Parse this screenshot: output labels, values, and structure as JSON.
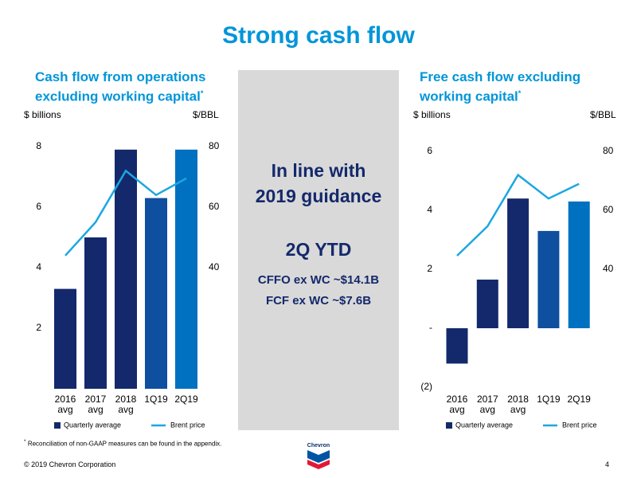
{
  "title": "Strong cash flow",
  "note_mark": "*",
  "chart_data": [
    {
      "type": "bar",
      "subtitle": "Cash flow from operations excluding working capital",
      "ylabel": "$ billions",
      "y2label": "$/BBL",
      "categories": [
        "2016 avg",
        "2017 avg",
        "2018 avg",
        "1Q19",
        "2Q19"
      ],
      "series": [
        {
          "name": "Quarterly average",
          "type": "bar",
          "color": "#14296b",
          "colors": [
            "#14296b",
            "#14296b",
            "#14296b",
            "#0e4f9f",
            "#0070c0"
          ],
          "values": [
            3.3,
            5.0,
            7.9,
            6.3,
            7.9
          ]
        },
        {
          "name": "Brent price",
          "type": "line",
          "color": "#1ba7e0",
          "axis": "y2",
          "values": [
            44,
            55,
            72,
            64,
            69.5
          ]
        }
      ],
      "ylim": [
        0,
        8
      ],
      "yticks": [
        2,
        4,
        6,
        8
      ],
      "y2lim": [
        0,
        80
      ],
      "y2ticks": [
        40,
        60,
        80
      ],
      "grid": false
    },
    {
      "type": "bar",
      "subtitle": "Free cash flow excluding working capital",
      "ylabel": "$ billions",
      "y2label": "$/BBL",
      "categories": [
        "2016 avg",
        "2017 avg",
        "2018 avg",
        "1Q19",
        "2Q19"
      ],
      "series": [
        {
          "name": "Quarterly average",
          "type": "bar",
          "color": "#14296b",
          "colors": [
            "#14296b",
            "#14296b",
            "#14296b",
            "#0e4f9f",
            "#0070c0"
          ],
          "values": [
            -1.2,
            1.65,
            4.4,
            3.3,
            4.3
          ]
        },
        {
          "name": "Brent price",
          "type": "line",
          "color": "#1ba7e0",
          "axis": "y2",
          "values": [
            44.6,
            54.6,
            72,
            64,
            69
          ]
        }
      ],
      "ylim": [
        -2,
        6
      ],
      "yticks": [
        {
          "value": -2,
          "label": "(2)"
        },
        {
          "value": 0,
          "label": "-"
        },
        2,
        4,
        6
      ],
      "y2lim": [
        0,
        80
      ],
      "y2ticks": [
        40,
        60,
        80
      ],
      "grid": false
    }
  ],
  "callout": {
    "headline": "In line with 2019 guidance",
    "subhead": "2Q YTD",
    "lines": [
      "CFFO ex WC ~$14.1B",
      "FCF ex WC ~$7.6B"
    ]
  },
  "footnote": "Reconciliation of non-GAAP measures can be found in the appendix.",
  "footer": {
    "copyright": "© 2019 Chevron Corporation",
    "page": "4",
    "logo": "Chevron"
  }
}
